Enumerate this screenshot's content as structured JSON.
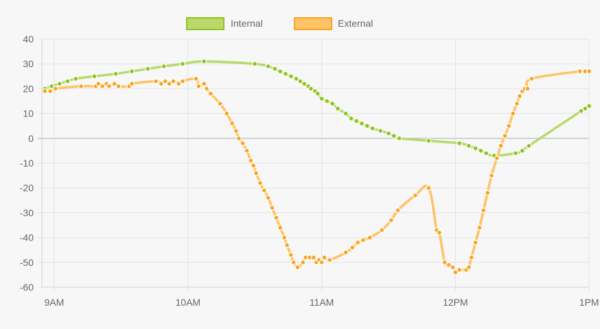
{
  "chart_data": {
    "type": "line",
    "x_unit": "hour of day (24h)",
    "xlim": [
      8.9,
      13.0
    ],
    "ylim": [
      -60,
      40
    ],
    "y_ticks": [
      40,
      30,
      20,
      10,
      0,
      -10,
      -20,
      -30,
      -40,
      -50,
      -60
    ],
    "y_tick_labels": [
      "40",
      "30",
      "20",
      "10",
      "0",
      "-10",
      "-20",
      "-30",
      "-40",
      "-50",
      "-60"
    ],
    "x_ticks": [
      9,
      10,
      11,
      12,
      13
    ],
    "x_tick_labels": [
      "9AM",
      "10AM",
      "11AM",
      "12PM",
      "1PM"
    ],
    "grid": true,
    "legend_position": "top-center",
    "series": [
      {
        "name": "Internal",
        "color": "#8fc31f",
        "fill": "#b9d96b",
        "points": [
          [
            8.93,
            20
          ],
          [
            8.98,
            21
          ],
          [
            9.04,
            22
          ],
          [
            9.1,
            23
          ],
          [
            9.16,
            24
          ],
          [
            9.3,
            25
          ],
          [
            9.46,
            26
          ],
          [
            9.58,
            27
          ],
          [
            9.7,
            28
          ],
          [
            9.82,
            29
          ],
          [
            9.96,
            30
          ],
          [
            10.12,
            31
          ],
          [
            10.5,
            30
          ],
          [
            10.6,
            29
          ],
          [
            10.65,
            28
          ],
          [
            10.69,
            27
          ],
          [
            10.73,
            26
          ],
          [
            10.77,
            25
          ],
          [
            10.81,
            24
          ],
          [
            10.84,
            23
          ],
          [
            10.87,
            22
          ],
          [
            10.9,
            21
          ],
          [
            10.92,
            20
          ],
          [
            10.95,
            19
          ],
          [
            10.97,
            18
          ],
          [
            11.0,
            16
          ],
          [
            11.04,
            15
          ],
          [
            11.08,
            14
          ],
          [
            11.12,
            12
          ],
          [
            11.18,
            10
          ],
          [
            11.22,
            8
          ],
          [
            11.26,
            7
          ],
          [
            11.3,
            6
          ],
          [
            11.34,
            5
          ],
          [
            11.38,
            4
          ],
          [
            11.44,
            3
          ],
          [
            11.5,
            2
          ],
          [
            11.54,
            1
          ],
          [
            11.58,
            0
          ],
          [
            11.8,
            -1
          ],
          [
            12.03,
            -2
          ],
          [
            12.1,
            -3
          ],
          [
            12.15,
            -4
          ],
          [
            12.19,
            -5
          ],
          [
            12.23,
            -6
          ],
          [
            12.29,
            -7
          ],
          [
            12.45,
            -6
          ],
          [
            12.5,
            -5
          ],
          [
            12.55,
            -3
          ],
          [
            12.94,
            11
          ],
          [
            12.97,
            12
          ],
          [
            13.0,
            13
          ]
        ]
      },
      {
        "name": "External",
        "color": "#f5a623",
        "fill": "#ffc266",
        "points": [
          [
            8.93,
            19
          ],
          [
            8.97,
            19
          ],
          [
            9.01,
            20
          ],
          [
            9.2,
            21
          ],
          [
            9.31,
            21
          ],
          [
            9.33,
            22
          ],
          [
            9.36,
            21
          ],
          [
            9.39,
            22
          ],
          [
            9.41,
            21
          ],
          [
            9.45,
            22
          ],
          [
            9.48,
            21
          ],
          [
            9.56,
            21
          ],
          [
            9.58,
            22
          ],
          [
            9.76,
            23
          ],
          [
            9.8,
            22
          ],
          [
            9.83,
            23
          ],
          [
            9.86,
            22
          ],
          [
            9.89,
            23
          ],
          [
            9.93,
            22
          ],
          [
            9.96,
            23
          ],
          [
            10.06,
            24
          ],
          [
            10.08,
            21
          ],
          [
            10.12,
            22
          ],
          [
            10.14,
            20
          ],
          [
            10.17,
            18
          ],
          [
            10.24,
            14
          ],
          [
            10.29,
            10
          ],
          [
            10.33,
            6
          ],
          [
            10.36,
            3
          ],
          [
            10.38,
            0
          ],
          [
            10.41,
            -2
          ],
          [
            10.44,
            -5
          ],
          [
            10.47,
            -9
          ],
          [
            10.49,
            -11
          ],
          [
            10.51,
            -14
          ],
          [
            10.54,
            -18
          ],
          [
            10.57,
            -21
          ],
          [
            10.6,
            -24
          ],
          [
            10.63,
            -28
          ],
          [
            10.66,
            -32
          ],
          [
            10.69,
            -36
          ],
          [
            10.72,
            -40
          ],
          [
            10.74,
            -43
          ],
          [
            10.77,
            -47
          ],
          [
            10.79,
            -50
          ],
          [
            10.82,
            -52
          ],
          [
            10.86,
            -50
          ],
          [
            10.88,
            -48
          ],
          [
            10.91,
            -48
          ],
          [
            10.94,
            -48
          ],
          [
            10.96,
            -50
          ],
          [
            10.98,
            -49
          ],
          [
            11.0,
            -50
          ],
          [
            11.02,
            -48
          ],
          [
            11.06,
            -49
          ],
          [
            11.18,
            -46
          ],
          [
            11.23,
            -44
          ],
          [
            11.27,
            -42
          ],
          [
            11.31,
            -41
          ],
          [
            11.36,
            -40
          ],
          [
            11.45,
            -37
          ],
          [
            11.52,
            -33
          ],
          [
            11.57,
            -29
          ],
          [
            11.7,
            -23
          ],
          [
            11.8,
            -20
          ],
          [
            11.86,
            -37
          ],
          [
            11.88,
            -38
          ],
          [
            11.92,
            -50
          ],
          [
            11.95,
            -51
          ],
          [
            11.98,
            -52
          ],
          [
            12.0,
            -54
          ],
          [
            12.03,
            -53
          ],
          [
            12.08,
            -53
          ],
          [
            12.1,
            -52
          ],
          [
            12.12,
            -48
          ],
          [
            12.15,
            -42
          ],
          [
            12.18,
            -36
          ],
          [
            12.21,
            -29
          ],
          [
            12.24,
            -22
          ],
          [
            12.27,
            -15
          ],
          [
            12.31,
            -8
          ],
          [
            12.34,
            -3
          ],
          [
            12.37,
            1
          ],
          [
            12.4,
            5
          ],
          [
            12.43,
            10
          ],
          [
            12.46,
            14
          ],
          [
            12.48,
            17
          ],
          [
            12.5,
            19
          ],
          [
            12.52,
            20
          ],
          [
            12.54,
            20
          ],
          [
            12.57,
            24
          ],
          [
            12.93,
            27
          ],
          [
            12.97,
            27
          ],
          [
            13.0,
            27
          ]
        ]
      }
    ]
  }
}
